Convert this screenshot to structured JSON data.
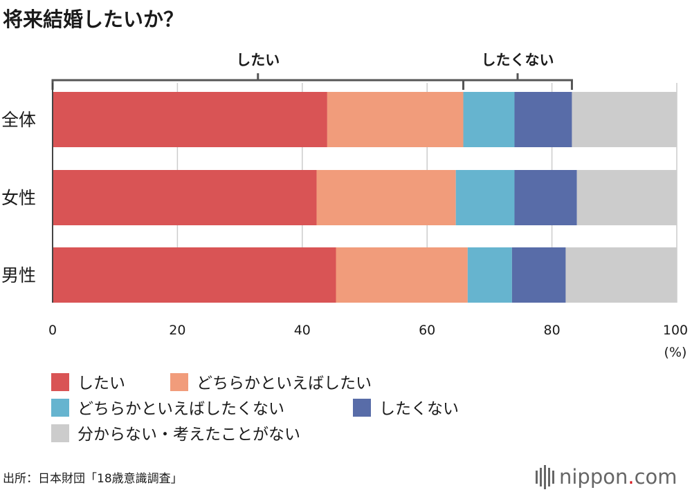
{
  "chart_data": {
    "type": "bar",
    "orientation": "horizontal",
    "stacked": true,
    "title": "将来結婚したいか？",
    "categories": [
      "全体",
      "女性",
      "男性"
    ],
    "series": [
      {
        "name": "したい",
        "color": "#d95455",
        "values": [
          44.0,
          42.3,
          45.4
        ]
      },
      {
        "name": "どちらかといえばしたい",
        "color": "#f19c7b",
        "values": [
          21.8,
          22.3,
          21.1
        ]
      },
      {
        "name": "どちらかといえばしたくない",
        "color": "#66b4cf",
        "values": [
          8.2,
          9.4,
          7.1
        ]
      },
      {
        "name": "したくない",
        "color": "#586ca8",
        "values": [
          9.2,
          10.0,
          8.6
        ]
      },
      {
        "name": "分からない・考えたことがない",
        "color": "#cccccc",
        "values": [
          16.8,
          16.0,
          17.8
        ]
      }
    ],
    "xlim": [
      0,
      100
    ],
    "xticks": [
      "0",
      "20",
      "40",
      "60",
      "80",
      "100"
    ],
    "xunit": "(%)",
    "grid": true,
    "legend_position": "bottom",
    "brackets": [
      {
        "label": "したい",
        "from": 0,
        "to": 65.8
      },
      {
        "label": "したくない",
        "from": 65.8,
        "to": 83.2
      }
    ]
  },
  "footer": {
    "source": "出所：日本財団「18歳意識調査」",
    "logo_main": "nippon",
    "logo_dot": ".",
    "logo_tld": "com"
  },
  "colors": {
    "text": "#1a1a1a",
    "grid": "#cccccc",
    "bracket": "#555555",
    "logo_gray": "#666666",
    "logo_red": "#d7141a"
  }
}
